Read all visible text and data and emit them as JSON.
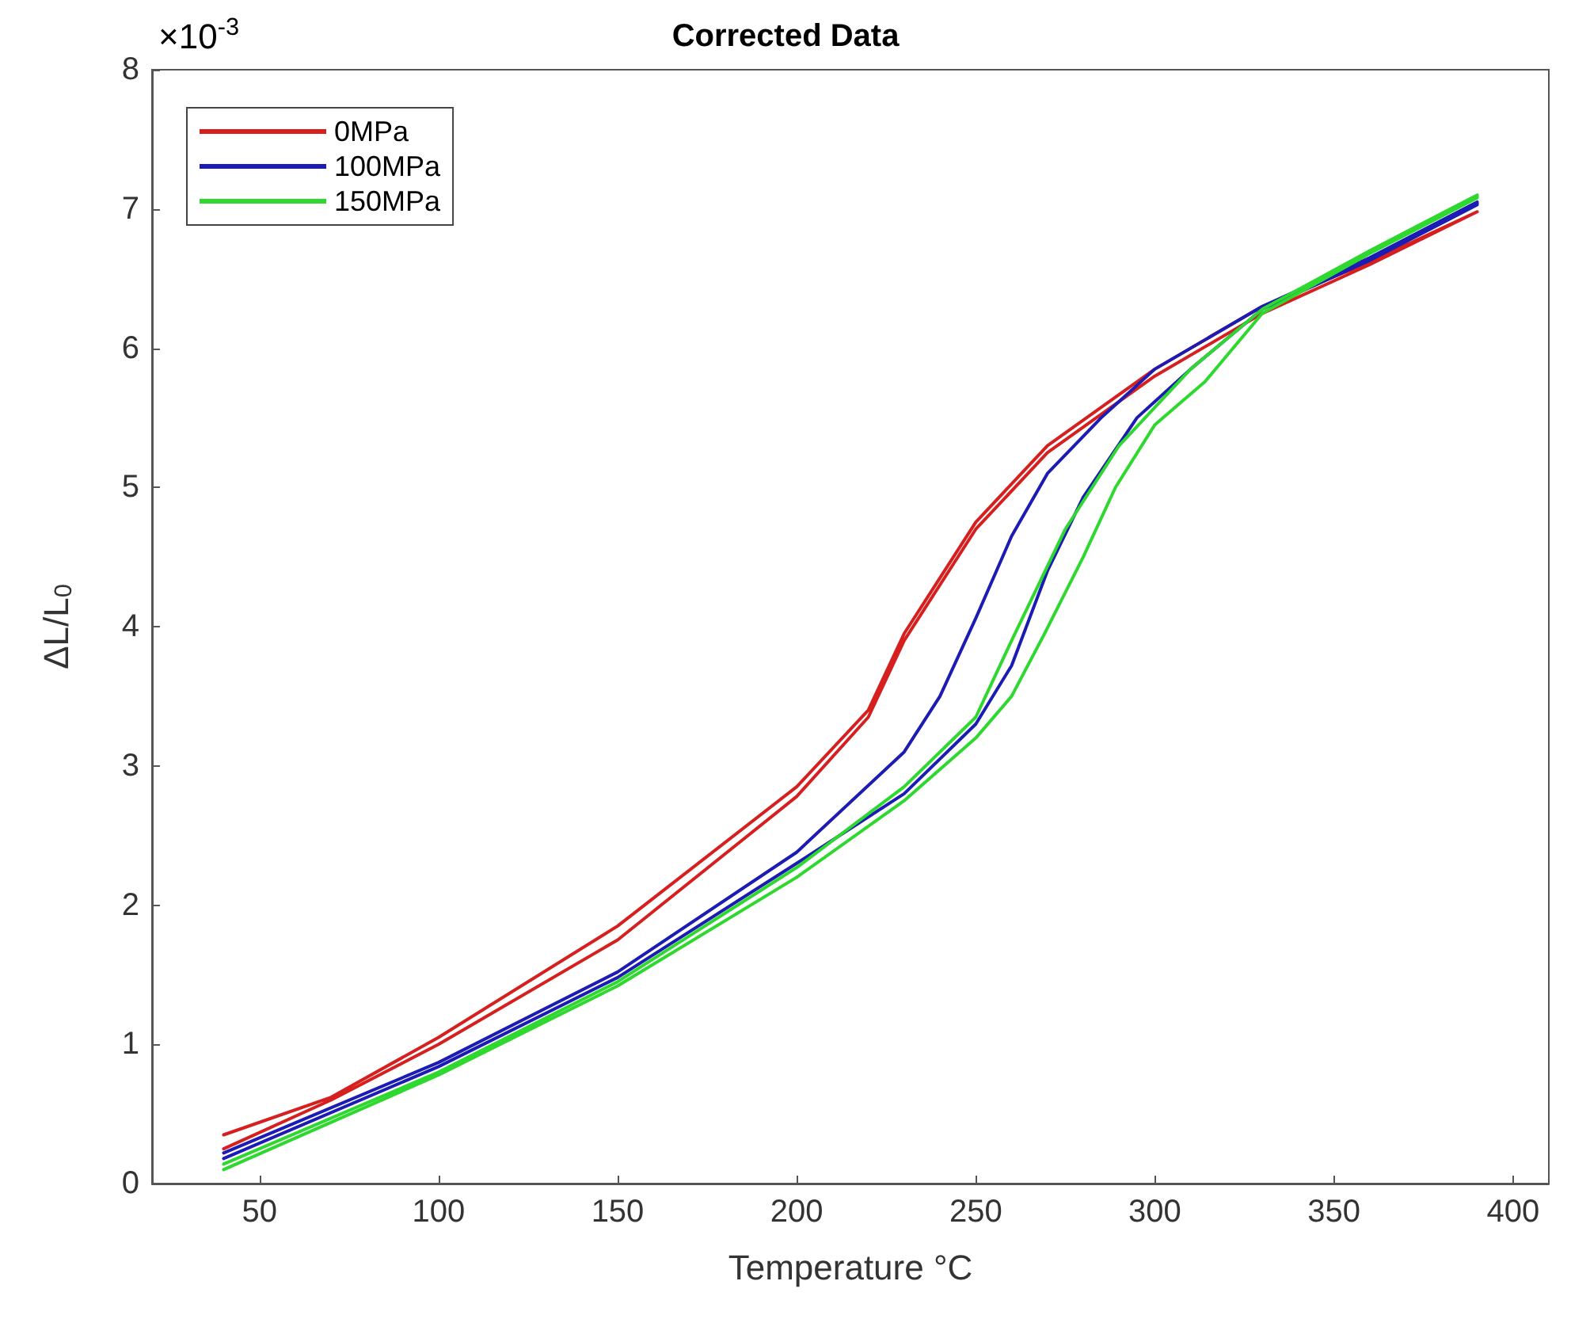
{
  "chart_data": {
    "type": "line",
    "title": "Corrected Data",
    "xlabel": "Temperature °C",
    "ylabel": "ΔL/L$_{0}$",
    "annotations": [
      "×10$^{-3}$"
    ],
    "xlim": [
      20,
      410
    ],
    "xticks": [
      50,
      100,
      150,
      200,
      250,
      300,
      350,
      400
    ],
    "ylim": [
      0,
      8
    ],
    "yticks": [
      0,
      1,
      2,
      3,
      4,
      5,
      6,
      7,
      8
    ],
    "grid": false,
    "legend": "top left",
    "marker": "none",
    "line_style": "solid",
    "series": [
      {
        "name": "0MPa",
        "color": "#d62020",
        "x": [
          40,
          70,
          100,
          150,
          200,
          220,
          230,
          250,
          270,
          300,
          330,
          360,
          390,
          390,
          360,
          330,
          300,
          270,
          250,
          230,
          220,
          200,
          150,
          100,
          70,
          40
        ],
        "values": [
          0.35,
          0.62,
          1.05,
          1.85,
          2.85,
          3.4,
          3.95,
          4.75,
          5.3,
          5.85,
          6.3,
          6.62,
          6.98,
          6.98,
          6.6,
          6.25,
          5.8,
          5.25,
          4.7,
          3.9,
          3.35,
          2.78,
          1.75,
          1.0,
          0.6,
          0.25
        ]
      },
      {
        "name": "100MPa",
        "color": "#1c1cb4",
        "x": [
          40,
          100,
          150,
          200,
          230,
          240,
          250,
          260,
          270,
          285,
          300,
          330,
          360,
          390,
          390,
          360,
          330,
          310,
          295,
          280,
          270,
          260,
          250,
          230,
          200,
          150,
          100,
          40
        ],
        "values": [
          0.22,
          0.87,
          1.52,
          2.38,
          3.1,
          3.5,
          4.06,
          4.65,
          5.1,
          5.5,
          5.85,
          6.3,
          6.65,
          7.05,
          7.03,
          6.63,
          6.28,
          5.85,
          5.5,
          4.93,
          4.4,
          3.72,
          3.3,
          2.8,
          2.3,
          1.48,
          0.84,
          0.18
        ]
      },
      {
        "name": "150MPa",
        "color": "#2ed82e",
        "x": [
          40,
          100,
          150,
          200,
          230,
          250,
          260,
          275,
          290,
          310,
          330,
          360,
          390,
          390,
          360,
          330,
          314,
          300,
          289,
          280,
          269,
          260,
          250,
          230,
          200,
          150,
          100,
          40
        ],
        "values": [
          0.14,
          0.8,
          1.45,
          2.27,
          2.85,
          3.35,
          3.9,
          4.7,
          5.3,
          5.85,
          6.28,
          6.7,
          7.1,
          7.08,
          6.68,
          6.25,
          5.76,
          5.45,
          5.0,
          4.5,
          3.94,
          3.5,
          3.2,
          2.75,
          2.2,
          1.42,
          0.78,
          0.1
        ]
      }
    ]
  }
}
